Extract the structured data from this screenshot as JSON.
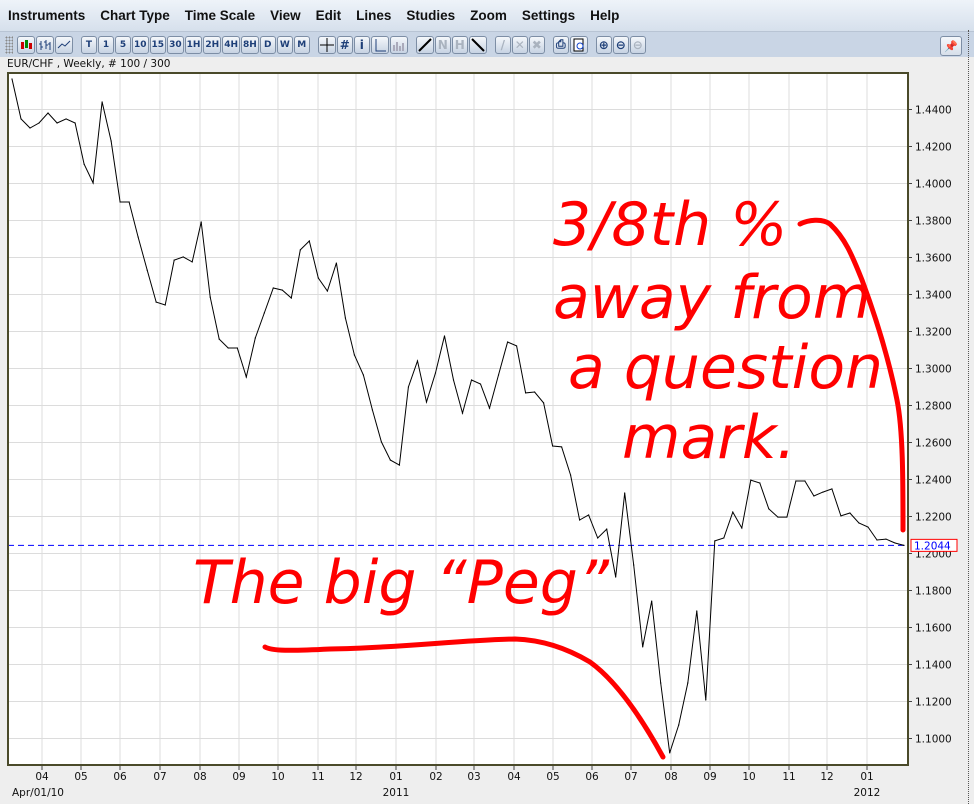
{
  "menu": [
    "Instruments",
    "Chart Type",
    "Time Scale",
    "View",
    "Edit",
    "Lines",
    "Studies",
    "Zoom",
    "Settings",
    "Help"
  ],
  "toolbar": {
    "chart_type_icons": [
      "candlestick-icon",
      "bar-chart-icon",
      "line-chart-icon"
    ],
    "time_scales": [
      "T",
      "1",
      "5",
      "10",
      "15",
      "30",
      "1H",
      "2H",
      "4H",
      "8H",
      "D",
      "W",
      "M"
    ],
    "cursor_icons": [
      "crosshair-icon",
      "grid-icon",
      "info-icon",
      "ruler-icon",
      "volume-icon"
    ],
    "line_icons": [
      "trendline-icon",
      "parallel-line-icon",
      "channel-icon",
      "fibonacci-icon"
    ],
    "delete_icons": [
      "delete-line-icon",
      "delete-icon",
      "delete-all-icon"
    ],
    "print_icons": [
      "print-icon",
      "print-preview-icon"
    ],
    "zoom_icons": [
      "zoom-in-icon",
      "zoom-out-icon",
      "zoom-reset-icon"
    ],
    "pin_icon": "pin-icon"
  },
  "chart_title": "EUR/CHF , Weekly, # 100 / 300",
  "chart_data": {
    "type": "line",
    "title": "EUR/CHF , Weekly, # 100 / 300",
    "ylim": [
      1.085,
      1.46
    ],
    "yticks": [
      "1.4400",
      "1.4200",
      "1.4000",
      "1.3800",
      "1.3600",
      "1.3400",
      "1.3200",
      "1.3000",
      "1.2800",
      "1.2600",
      "1.2400",
      "1.2200",
      "1.2000",
      "1.1800",
      "1.1600",
      "1.1400",
      "1.1200",
      "1.1000"
    ],
    "xticks": [
      "04",
      "05",
      "06",
      "07",
      "08",
      "09",
      "10",
      "11",
      "12",
      "01",
      "02",
      "03",
      "04",
      "05",
      "06",
      "07",
      "08",
      "09",
      "10",
      "11",
      "12",
      "01"
    ],
    "xlabels_secondary": [
      "Apr/01/10",
      "2011",
      "2012"
    ],
    "grid": true,
    "line_color": "#000000",
    "values": [
      1.4565,
      1.4349,
      1.43,
      1.4327,
      1.4381,
      1.4327,
      1.4349,
      1.4327,
      1.4105,
      1.4003,
      1.4441,
      1.423,
      1.39,
      1.39,
      1.3711,
      1.3532,
      1.3359,
      1.3343,
      1.3586,
      1.3603,
      1.3576,
      1.3792,
      1.3386,
      1.3159,
      1.3111,
      1.3111,
      1.2954,
      1.3165,
      1.33,
      1.3435,
      1.3424,
      1.3381,
      1.3641,
      1.3689,
      1.3489,
      1.3419,
      1.357,
      1.3273,
      1.3073,
      1.2965,
      1.2776,
      1.2603,
      1.2505,
      1.2478,
      1.29,
      1.3041,
      1.2819,
      1.2976,
      1.3176,
      1.2938,
      1.2759,
      1.2938,
      1.2916,
      1.2786,
      1.2965,
      1.3143,
      1.3122,
      1.2868,
      1.2873,
      1.2814,
      1.2581,
      1.2576,
      1.2424,
      1.2181,
      1.2208,
      1.2084,
      1.2132,
      1.1873,
      1.2327,
      1.1938,
      1.1495,
      1.1743,
      1.13,
      1.0922,
      1.1073,
      1.13,
      1.1689,
      1.1208,
      1.2068,
      1.2084,
      1.2224,
      1.2138,
      1.2397,
      1.2381,
      1.2241,
      1.2197,
      1.2197,
      1.2392,
      1.2392,
      1.2311,
      1.2332,
      1.2349,
      1.2203,
      1.2219,
      1.2165,
      1.2143,
      1.2073,
      1.2078,
      1.2057,
      1.2044
    ],
    "current_price": {
      "label": "1.2044",
      "value": 1.2044,
      "line_color": "#0000ff",
      "box_border": "#ff0000"
    },
    "annotations": {
      "color": "#ff0000",
      "top_right": [
        "3/8th %",
        "away from",
        "a question",
        "mark."
      ],
      "bottom": "The big “Peg”"
    }
  }
}
